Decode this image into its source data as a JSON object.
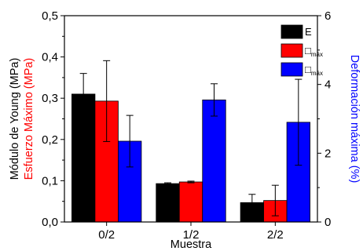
{
  "chart_data": {
    "type": "bar",
    "title": "",
    "xlabel": "Muestra",
    "ylabel_primary": "Módulo de Young (MPa)",
    "ylabel_secondary": "Esfuerzo Máximo (MPa)",
    "ylabel_right": "Deformación máxima (%)",
    "categories": [
      "0/2",
      "1/2",
      "2/2"
    ],
    "ylim_left": [
      0,
      0.5
    ],
    "yticks_left": [
      "0,0",
      "0,1",
      "0,2",
      "0,3",
      "0,4",
      "0,5"
    ],
    "ylim_right": [
      0,
      6
    ],
    "yticks_right": [
      "0",
      "2",
      "4",
      "6"
    ],
    "legend_position": "top-right",
    "grid": false,
    "series": [
      {
        "name": "E",
        "axis": "left",
        "color": "#000000",
        "values": [
          0.31,
          0.093,
          0.047
        ],
        "errors": [
          0.05,
          0.002,
          0.02
        ]
      },
      {
        "name": "□máx",
        "legend_symbol": "□",
        "legend_sub": "máx",
        "axis": "left",
        "color": "#ff0000",
        "values": [
          0.293,
          0.097,
          0.052
        ],
        "errors": [
          0.098,
          0.002,
          0.037
        ]
      },
      {
        "name": "□máx",
        "legend_symbol": "□",
        "legend_sub": "máx",
        "axis": "right",
        "color": "#0000ff",
        "values": [
          2.35,
          3.55,
          2.9
        ],
        "errors": [
          0.75,
          0.47,
          1.25
        ]
      }
    ]
  }
}
